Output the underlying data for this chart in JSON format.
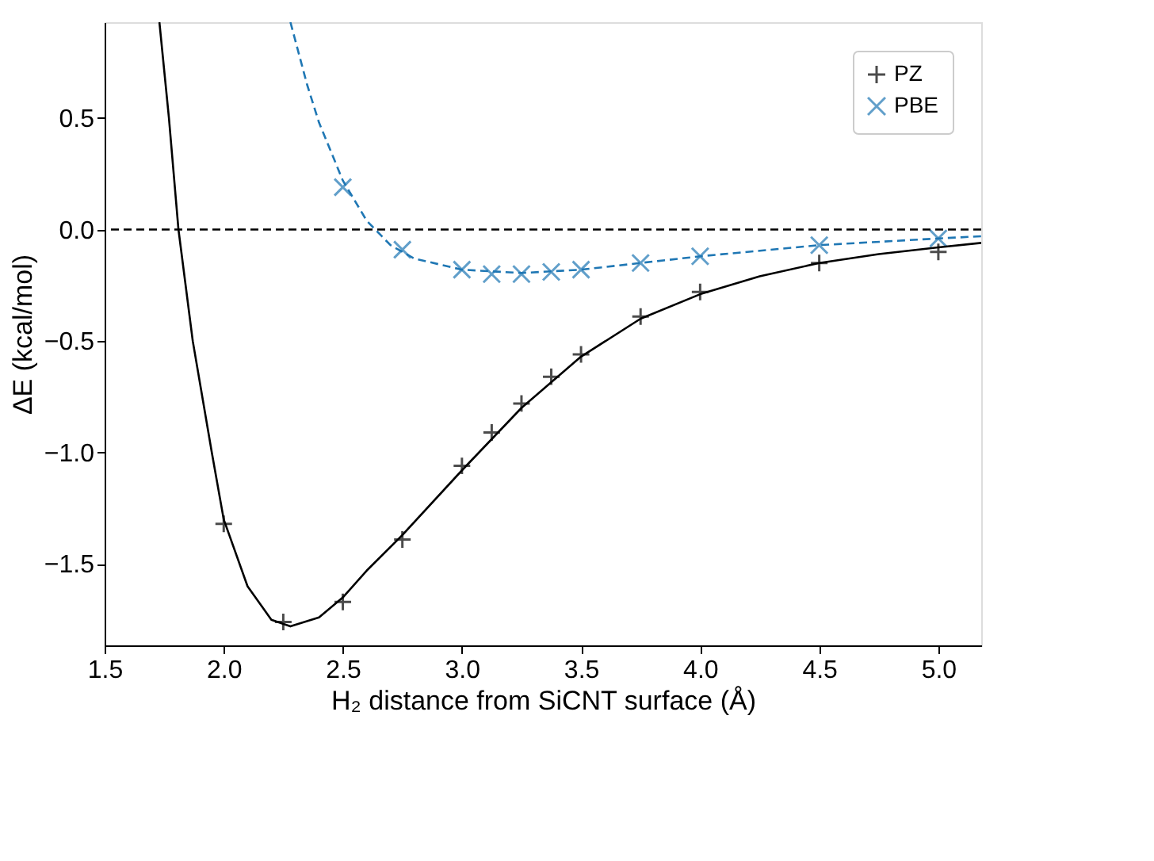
{
  "chart_data": {
    "type": "scatter",
    "xlabel": "H₂ distance from SiCNT surface (Å)",
    "ylabel": "ΔE (kcal/mol)",
    "xlim": [
      1.5,
      5.18
    ],
    "ylim": [
      -1.865,
      0.93
    ],
    "xticks": [
      1.5,
      {
        "value": 2,
        "label": "2.0"
      },
      2.5,
      {
        "value": 3,
        "label": "3.0"
      },
      3.5,
      {
        "value": 4,
        "label": "4.0"
      },
      4.5,
      {
        "value": 5,
        "label": "5.0"
      }
    ],
    "yticks": [
      {
        "value": -1.5,
        "label": "−1.5"
      },
      {
        "value": -1,
        "label": "−1.0"
      },
      {
        "value": -0.5,
        "label": "−0.5"
      },
      {
        "value": 0,
        "label": "0.0"
      },
      0.5
    ],
    "grid": false,
    "legend": "top right",
    "ref_lines": [
      {
        "axis": "y",
        "value": 0,
        "color": "#000000",
        "line_style": "dashed"
      }
    ],
    "series": [
      {
        "name": "PZ",
        "color": "#000000",
        "marker": "cross",
        "x": [
          2.0,
          2.25,
          2.5,
          2.75,
          3.0,
          3.125,
          3.25,
          3.375,
          3.5,
          3.75,
          4.0,
          4.5,
          5.0
        ],
        "values": [
          -1.32,
          -1.76,
          -1.67,
          -1.39,
          -1.06,
          -0.91,
          -0.78,
          -0.66,
          -0.56,
          -0.39,
          -0.28,
          -0.15,
          -0.1
        ]
      },
      {
        "name": "PBE",
        "color": "#1f77b4",
        "marker": "x",
        "x": [
          2.5,
          2.75,
          3.0,
          3.125,
          3.25,
          3.375,
          3.5,
          3.75,
          4.0,
          4.5,
          5.0
        ],
        "values": [
          0.19,
          -0.09,
          -0.18,
          -0.2,
          -0.2,
          -0.19,
          -0.18,
          -0.15,
          -0.12,
          -0.07,
          -0.04
        ]
      },
      {
        "type": "line",
        "color": "#000000",
        "line_style": "solid",
        "x": [
          1.73,
          1.77,
          1.81,
          1.87,
          1.95,
          2.0,
          2.1,
          2.2,
          2.28,
          2.4,
          2.5,
          2.6,
          2.75,
          3.0,
          3.25,
          3.5,
          3.75,
          4.0,
          4.25,
          4.5,
          4.75,
          5.0,
          5.18
        ],
        "values": [
          0.93,
          0.5,
          0.0,
          -0.5,
          -1.0,
          -1.3,
          -1.6,
          -1.75,
          -1.78,
          -1.74,
          -1.65,
          -1.53,
          -1.37,
          -1.08,
          -0.8,
          -0.57,
          -0.4,
          -0.29,
          -0.21,
          -0.15,
          -0.11,
          -0.08,
          -0.06
        ]
      },
      {
        "type": "line",
        "color": "#1f77b4",
        "line_style": "dashed",
        "x": [
          2.28,
          2.35,
          2.4,
          2.5,
          2.6,
          2.7,
          2.8,
          3.0,
          3.25,
          3.5,
          3.75,
          4.0,
          4.5,
          5.0,
          5.18
        ],
        "values": [
          0.93,
          0.65,
          0.48,
          0.22,
          0.04,
          -0.07,
          -0.13,
          -0.18,
          -0.195,
          -0.18,
          -0.15,
          -0.12,
          -0.07,
          -0.04,
          -0.03
        ]
      }
    ]
  }
}
